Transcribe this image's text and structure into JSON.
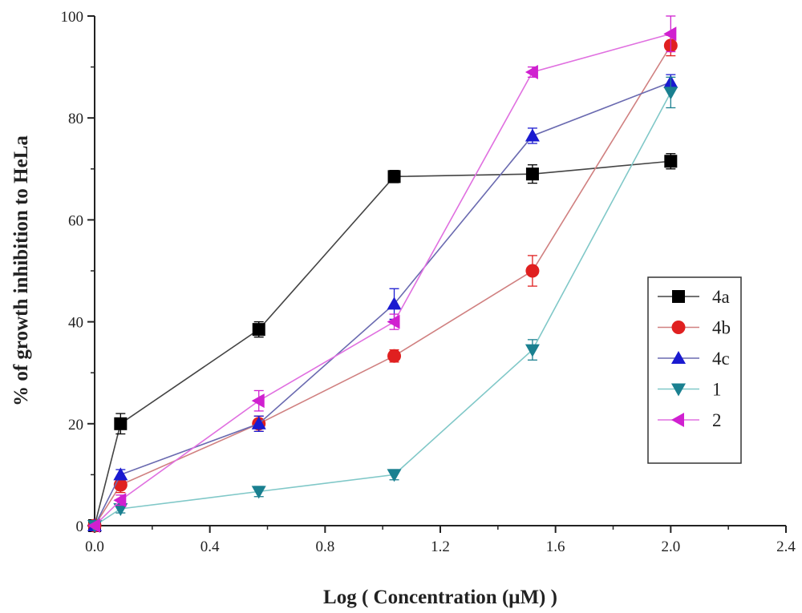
{
  "chart_data": {
    "type": "line",
    "xlabel": "Log ( Concentration (μM) )",
    "ylabel": "% of growth inhibition to HeLa",
    "xlim": [
      0.0,
      2.4
    ],
    "ylim": [
      0,
      100
    ],
    "xticks": [
      "0.0",
      "0.4",
      "0.8",
      "1.2",
      "1.6",
      "2.0",
      "2.4"
    ],
    "yticks": [
      "0",
      "20",
      "40",
      "60",
      "80",
      "100"
    ],
    "grid": false,
    "legend_position": "right",
    "series": [
      {
        "name": "4a",
        "color": "#000000",
        "line_color": "#444444",
        "marker": "square",
        "x": [
          0.0,
          0.09,
          0.57,
          1.04,
          1.52,
          2.0
        ],
        "y": [
          0,
          20,
          38.5,
          68.5,
          69,
          71.5
        ],
        "err": [
          0,
          2,
          1.5,
          1.2,
          1.8,
          1.5
        ]
      },
      {
        "name": "4b",
        "color": "#e02020",
        "line_color": "#d08080",
        "marker": "circle",
        "x": [
          0.0,
          0.09,
          0.57,
          1.04,
          1.52,
          2.0
        ],
        "y": [
          0,
          8,
          20,
          33.3,
          50,
          94.2
        ],
        "err": [
          0,
          1.5,
          1.5,
          1.2,
          3,
          2
        ]
      },
      {
        "name": "4c",
        "color": "#1a1ad0",
        "line_color": "#6a6ab0",
        "marker": "triangle-up",
        "x": [
          0.0,
          0.09,
          0.57,
          1.04,
          1.52,
          2.0
        ],
        "y": [
          0,
          10,
          20,
          43.5,
          76.5,
          87
        ],
        "err": [
          0,
          1,
          1.5,
          3,
          1.5,
          1.5
        ]
      },
      {
        "name": "1",
        "color": "#1a8090",
        "line_color": "#80c8c8",
        "marker": "triangle-down",
        "x": [
          0.0,
          0.09,
          0.57,
          1.04,
          1.52,
          2.0
        ],
        "y": [
          0,
          3.3,
          6.7,
          10,
          34.5,
          85
        ],
        "err": [
          0,
          0.8,
          1,
          1,
          2,
          3
        ]
      },
      {
        "name": "2",
        "color": "#d020d0",
        "line_color": "#e070e0",
        "marker": "triangle-left",
        "x": [
          0.0,
          0.09,
          0.57,
          1.04,
          1.52,
          2.0
        ],
        "y": [
          0,
          5,
          24.5,
          40,
          89,
          96.5
        ],
        "err": [
          0,
          1,
          2,
          1.5,
          1,
          3.5
        ]
      }
    ]
  }
}
